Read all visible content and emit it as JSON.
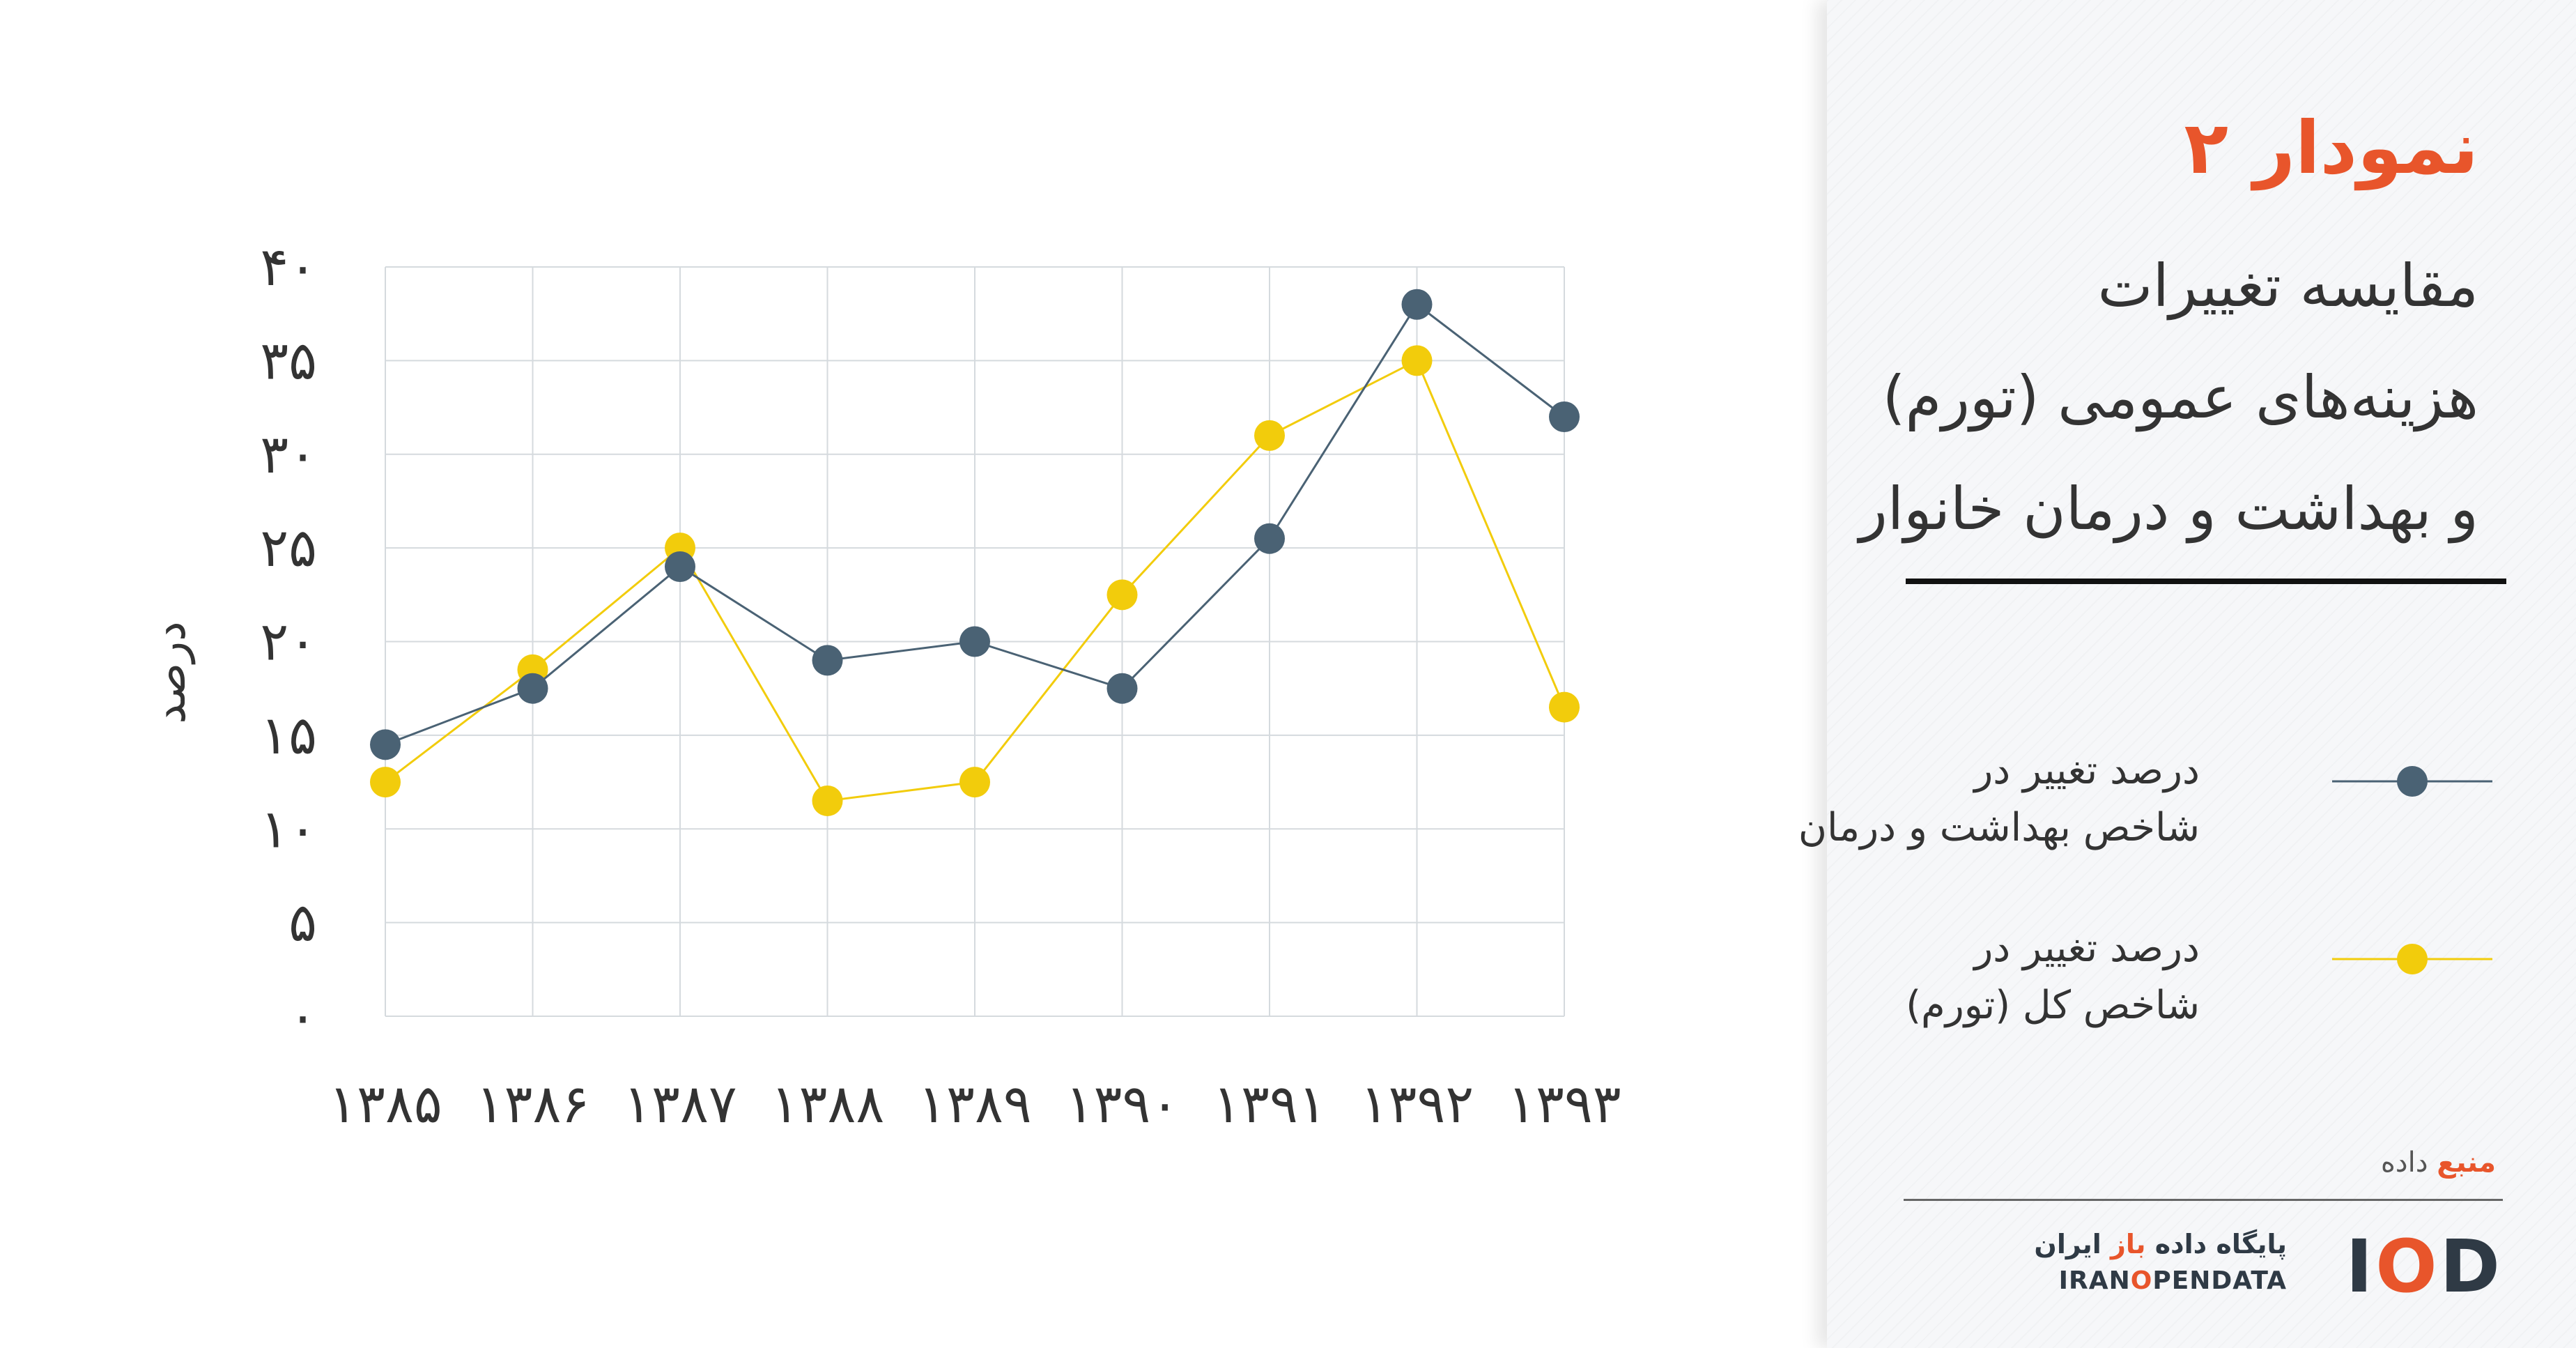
{
  "panel": {
    "figure_number": "نمودار ۲",
    "title_lines": [
      "مقایسه تغییرات",
      "هزینه‌های عمومی (تورم)",
      "و بهداشت و درمان خانوار"
    ],
    "legend": [
      {
        "line1": "درصد تغییر در",
        "line2": "شاخص بهداشت و درمان",
        "color": "#4a6274"
      },
      {
        "line1": "درصد تغییر در",
        "line2": "شاخص کل (تورم)",
        "color": "#f2cc0c"
      }
    ],
    "source_accent": "منبع",
    "source_rest": "داده",
    "logo": {
      "mark_left": "I",
      "mark_o": "O",
      "mark_right": "D",
      "name_fa_pre": "پایگاه داده",
      "name_fa_accent": "باز",
      "name_fa_post": "ایران",
      "name_en_pre": "IRAN",
      "name_en_o": "O",
      "name_en_post": "PENDATA"
    }
  },
  "chart_data": {
    "type": "line",
    "categories": [
      "۱۳۸۵",
      "۱۳۸۶",
      "۱۳۸۷",
      "۱۳۸۸",
      "۱۳۸۹",
      "۱۳۹۰",
      "۱۳۹۱",
      "۱۳۹۲",
      "۱۳۹۳"
    ],
    "series": [
      {
        "name": "درصد تغییر در شاخص بهداشت و درمان",
        "color": "#4a6274",
        "values": [
          14.5,
          17.5,
          24,
          19,
          20,
          17.5,
          25.5,
          38,
          32
        ]
      },
      {
        "name": "درصد تغییر در شاخص کل (تورم)",
        "color": "#f2cc0c",
        "values": [
          12.5,
          18.5,
          25,
          11.5,
          12.5,
          22.5,
          31,
          35,
          16.5
        ]
      }
    ],
    "ylabel": "درصد",
    "ylim": [
      0,
      40
    ],
    "yticks": [
      0,
      5,
      10,
      15,
      20,
      25,
      30,
      35,
      40
    ],
    "ytick_labels": [
      "۰",
      "۵",
      "۱۰",
      "۱۵",
      "۲۰",
      "۲۵",
      "۳۰",
      "۳۵",
      "۴۰"
    ],
    "grid": true,
    "legend_position": "right-panel"
  }
}
